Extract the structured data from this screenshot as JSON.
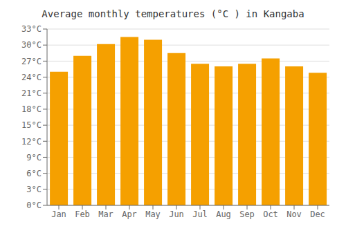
{
  "chart_data": {
    "type": "bar",
    "title": "Average monthly temperatures (°C ) in Kangaba",
    "categories": [
      "Jan",
      "Feb",
      "Mar",
      "Apr",
      "May",
      "Jun",
      "Jul",
      "Aug",
      "Sep",
      "Oct",
      "Nov",
      "Dec"
    ],
    "values": [
      25.0,
      28.0,
      30.2,
      31.5,
      31.0,
      28.5,
      26.5,
      26.0,
      26.5,
      27.5,
      26.0,
      24.8
    ],
    "color": "#F5A000",
    "ylim": [
      0,
      33
    ],
    "yticks": [
      {
        "value": 0,
        "label": "0°C"
      },
      {
        "value": 3,
        "label": "3°C"
      },
      {
        "value": 6,
        "label": "6°C"
      },
      {
        "value": 9,
        "label": "9°C"
      },
      {
        "value": 12,
        "label": "12°C"
      },
      {
        "value": 15,
        "label": "15°C"
      },
      {
        "value": 18,
        "label": "18°C"
      },
      {
        "value": 21,
        "label": "21°C"
      },
      {
        "value": 24,
        "label": "24°C"
      },
      {
        "value": 27,
        "label": "27°C"
      },
      {
        "value": 30,
        "label": "30°C"
      },
      {
        "value": 33,
        "label": "33°C"
      }
    ],
    "grid": true
  }
}
